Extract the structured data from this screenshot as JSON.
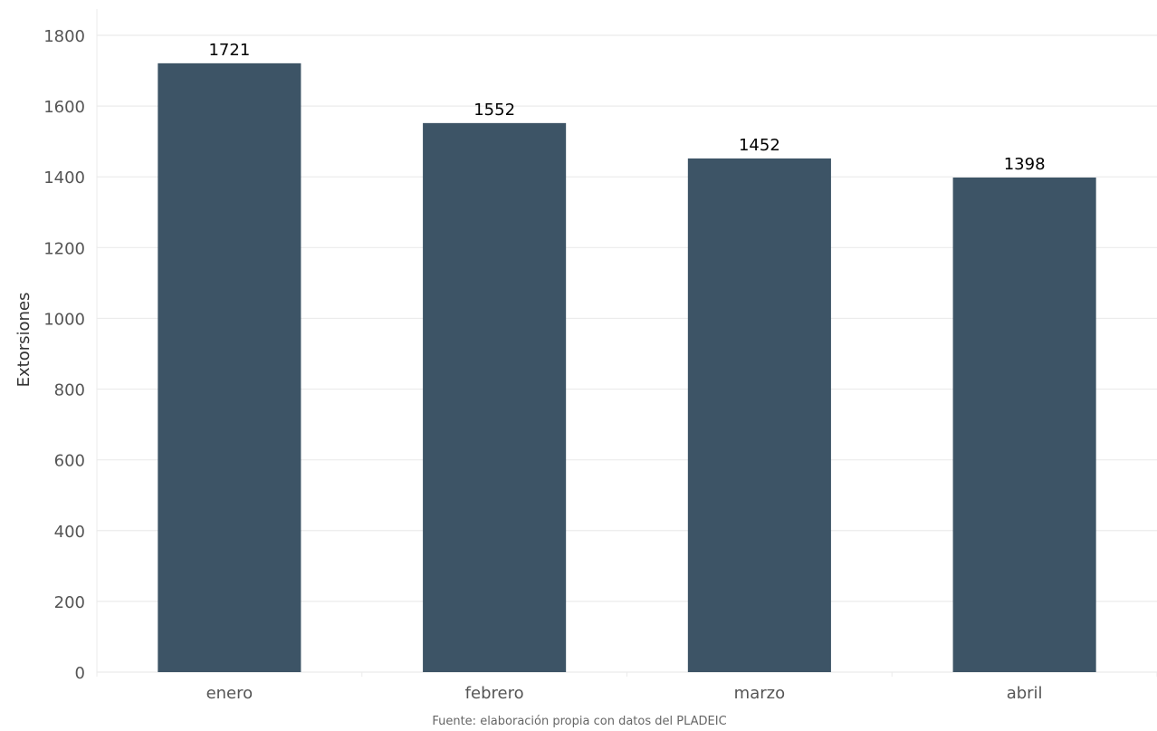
{
  "chart_data": {
    "type": "bar",
    "categories": [
      "enero",
      "febrero",
      "marzo",
      "abril"
    ],
    "values": [
      1721,
      1552,
      1452,
      1398
    ],
    "title": "",
    "xlabel": "",
    "ylabel": "Extorsiones",
    "ylim": [
      0,
      1800
    ],
    "yticks": [
      0,
      200,
      400,
      600,
      800,
      1000,
      1200,
      1400,
      1600,
      1800
    ],
    "data_labels": true,
    "grid": true,
    "caption": "Fuente: elaboración propia con datos del PLADEIC",
    "colors": {
      "bar": "#3d5466",
      "grid": "#ebebeb"
    }
  }
}
